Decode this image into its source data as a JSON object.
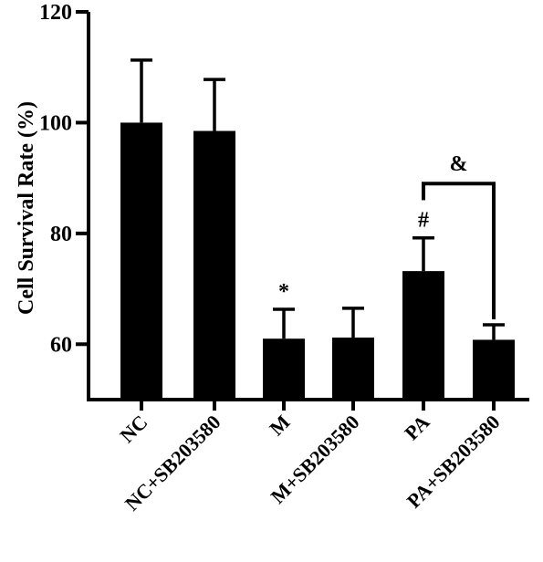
{
  "chart_data": {
    "type": "bar",
    "title": "",
    "xlabel": "",
    "ylabel": "Cell Survival Rate (%)",
    "ylim": [
      50,
      120
    ],
    "yticks": [
      60,
      80,
      100,
      120
    ],
    "categories": [
      "NC",
      "NC+SB203580",
      "M",
      "M+SB203580",
      "PA",
      "PA+SB203580"
    ],
    "values": [
      100,
      98.5,
      61,
      61.2,
      73.2,
      60.8
    ],
    "errors": [
      11.3,
      9.3,
      5.3,
      5.3,
      6.0,
      2.7
    ],
    "bar_color": "#000000",
    "grid": false,
    "annotations": [
      {
        "category_index": 2,
        "text": "*"
      },
      {
        "category_index": 4,
        "text": "#"
      }
    ],
    "comparison": {
      "from_index": 4,
      "to_index": 5,
      "text": "&",
      "bracket_y": 89
    }
  }
}
